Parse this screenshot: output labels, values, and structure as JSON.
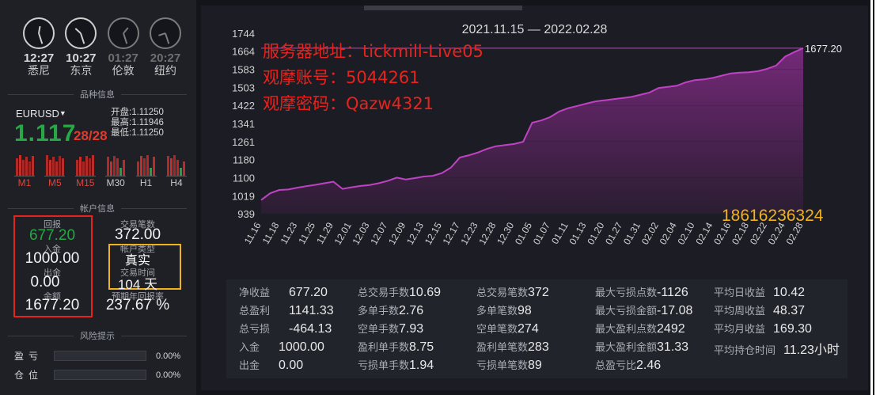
{
  "clocks": [
    {
      "time": "12:27",
      "city": "悉尼",
      "hour_deg": 10,
      "min_deg": 162,
      "dim": false
    },
    {
      "time": "10:27",
      "city": "东京",
      "hour_deg": 312,
      "min_deg": 162,
      "dim": false
    },
    {
      "time": "01:27",
      "city": "伦敦",
      "hour_deg": 40,
      "min_deg": 162,
      "dim": true
    },
    {
      "time": "20:27",
      "city": "纽约",
      "hour_deg": 252,
      "min_deg": 162,
      "dim": true
    }
  ],
  "section_symbol": "品种信息",
  "symbol": {
    "name": "EURUSD",
    "price_main": "1.117",
    "price_tail": "28/28",
    "open_label": "开盘:",
    "open": "1.11250",
    "high_label": "最高:",
    "high": "1.11946",
    "low_label": "最低:",
    "low": "1.11250"
  },
  "timeframes": [
    "M1",
    "M5",
    "M15",
    "M30",
    "H1",
    "H4"
  ],
  "section_account": "帐户信息",
  "account": {
    "return_label": "回报",
    "return_value": "677.20",
    "deposit_label": "入金",
    "deposit_value": "1000.00",
    "withdraw_label": "出金",
    "withdraw_value": "0.00",
    "balance_label": "余额",
    "balance_value": "1677.20",
    "trades_label": "交易笔数",
    "trades_value": "372.00",
    "type_label": "帐户类型",
    "type_value": "真实",
    "time_label": "交易时间",
    "time_value": "104 天",
    "annual_label": "预期年回报率",
    "annual_value": "237.67 %"
  },
  "section_risk": "风险提示",
  "risk": [
    {
      "label": "盈亏",
      "pct": "0.00%"
    },
    {
      "label": "仓位",
      "pct": "0.00%"
    }
  ],
  "overlay": {
    "line1": "服务器地址：tickmill-Live05",
    "line2": "观摩账号：5044261",
    "line3": "观摩密码：Qazw4321",
    "phone": "18616236324"
  },
  "chart_data": {
    "type": "area",
    "title": "2021.11.15 — 2022.02.28",
    "y_ticks": [
      "1744",
      "1664",
      "1583",
      "1503",
      "1422",
      "1341",
      "1261",
      "1180",
      "1100",
      "1019",
      "939"
    ],
    "ylim": [
      939,
      1744
    ],
    "x_ticks": [
      "11.16",
      "11.18",
      "11.23",
      "11.25",
      "11.29",
      "12.01",
      "12.03",
      "12.07",
      "12.09",
      "12.13",
      "12.15",
      "12.17",
      "12.23",
      "12.28",
      "12.30",
      "01.05",
      "01.07",
      "01.11",
      "01.13",
      "01.20",
      "01.27",
      "01.31",
      "02.02",
      "02.04",
      "02.10",
      "02.14",
      "02.16",
      "02.18",
      "02.22",
      "02.24",
      "02.28"
    ],
    "last_value_label": "1677.20",
    "values": [
      1000,
      1030,
      1045,
      1047,
      1055,
      1062,
      1068,
      1075,
      1082,
      1050,
      1057,
      1063,
      1067,
      1075,
      1085,
      1100,
      1092,
      1098,
      1105,
      1108,
      1120,
      1145,
      1190,
      1200,
      1212,
      1228,
      1240,
      1245,
      1250,
      1260,
      1345,
      1355,
      1370,
      1395,
      1410,
      1420,
      1430,
      1440,
      1445,
      1450,
      1455,
      1460,
      1470,
      1480,
      1500,
      1505,
      1510,
      1525,
      1535,
      1538,
      1545,
      1555,
      1565,
      1568,
      1570,
      1575,
      1585,
      1600,
      1640,
      1660,
      1677.2
    ]
  },
  "stats": [
    [
      {
        "k": "净收益",
        "v": "677.20"
      },
      {
        "k": "总盈利",
        "v": "1141.33"
      },
      {
        "k": "总亏损",
        "v": "-464.13"
      },
      {
        "k": "入金",
        "v": "1000.00"
      },
      {
        "k": "出金",
        "v": "0.00"
      }
    ],
    [
      {
        "k": "总交易手数",
        "v": "10.69"
      },
      {
        "k": "多单手数",
        "v": "2.76"
      },
      {
        "k": "空单手数",
        "v": "7.93"
      },
      {
        "k": "盈利单手数",
        "v": "8.75"
      },
      {
        "k": "亏损单手数",
        "v": "1.94"
      }
    ],
    [
      {
        "k": "总交易笔数",
        "v": "372"
      },
      {
        "k": "多单笔数",
        "v": "98"
      },
      {
        "k": "空单笔数",
        "v": "274"
      },
      {
        "k": "盈利单笔数",
        "v": "283"
      },
      {
        "k": "亏损单笔数",
        "v": "89"
      }
    ],
    [
      {
        "k": "最大亏损点数",
        "v": "-1126"
      },
      {
        "k": "最大亏损金额",
        "v": "-17.08"
      },
      {
        "k": "最大盈利点数",
        "v": "2492"
      },
      {
        "k": "最大盈利金额",
        "v": "31.33"
      },
      {
        "k": "总盈亏比",
        "v": "2.46"
      }
    ],
    [
      {
        "k": "平均日收益",
        "v": "10.42"
      },
      {
        "k": "平均周收益",
        "v": "48.37"
      },
      {
        "k": "平均月收益",
        "v": "169.30"
      },
      {
        "k": "平均持仓时间",
        "v": "11.23小时"
      }
    ]
  ]
}
